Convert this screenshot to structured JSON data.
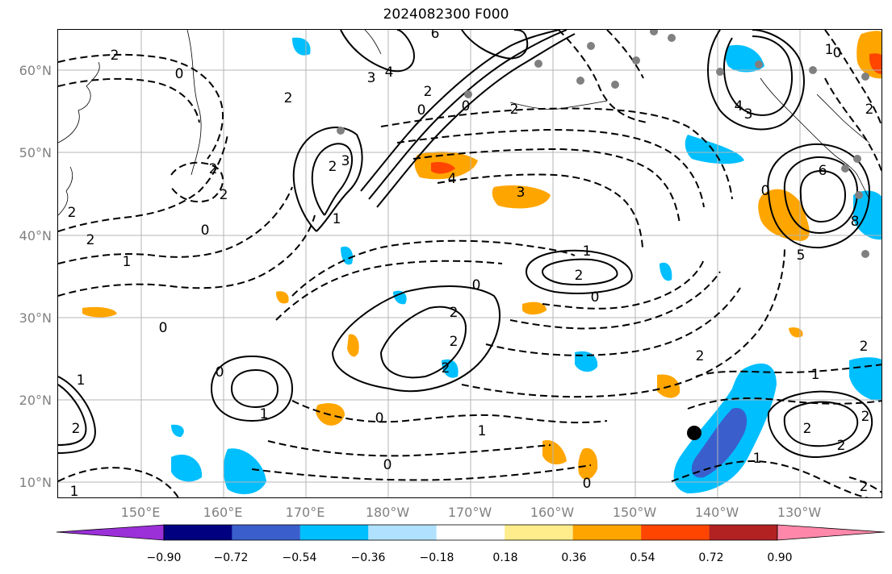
{
  "title": "2024082300 F000",
  "lat_labels": [
    "60°N",
    "50°N",
    "40°N",
    "30°N",
    "20°N",
    "10°N"
  ],
  "lon_labels": [
    "150°E",
    "160°E",
    "170°E",
    "180°W",
    "170°W",
    "160°W",
    "150°W",
    "140°W",
    "130°W"
  ],
  "colorbar": {
    "ticks": [
      "−0.90",
      "−0.72",
      "−0.54",
      "−0.36",
      "−0.18",
      "0.18",
      "0.36",
      "0.54",
      "0.72",
      "0.90"
    ],
    "colors": [
      "#9b30d9",
      "#000080",
      "#3a5fcd",
      "#00bfff",
      "#b0e2ff",
      "#ffffff",
      "#ffec8b",
      "#ffa500",
      "#ff4500",
      "#b22222",
      "#ff88aa"
    ]
  },
  "contour_labels": [
    "6",
    "2",
    "3",
    "4",
    "2",
    "0",
    "0",
    "2",
    "2",
    "0",
    "4",
    "3",
    "2",
    "3",
    "2",
    "1",
    "2",
    "0",
    "1",
    "2",
    "0",
    "4",
    "3",
    "6",
    "8",
    "5",
    "2",
    "1",
    "2",
    "2",
    "0",
    "0",
    "2",
    "1",
    "2",
    "0",
    "0",
    "1",
    "2",
    "1",
    "1",
    "2",
    "2",
    "0",
    "1",
    "0",
    "1",
    "2",
    "2",
    "2",
    "1",
    "2",
    "0",
    "0",
    "2"
  ],
  "colors": {
    "fill_warm": "#ffa500",
    "fill_hot": "#ff4500",
    "fill_cool": "#00bfff",
    "fill_cold": "#3a5fcd",
    "gridline": "#b4b4b4",
    "coast": "#000000"
  }
}
